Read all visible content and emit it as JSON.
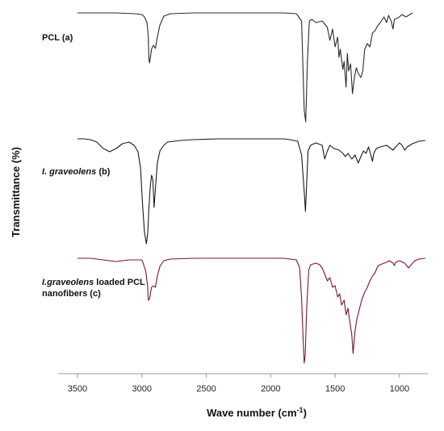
{
  "chart_data": {
    "type": "line",
    "xlabel": "Wave number (cm",
    "xlabel_sup": "-1",
    "xlabel_end": ")",
    "ylabel": "Transmittance (%)",
    "xlim": [
      3650,
      780
    ],
    "x_reversed": true,
    "x_ticks": [
      3500,
      3000,
      2500,
      2000,
      1500,
      1000
    ],
    "grid": false,
    "series": [
      {
        "label_parts": [
          {
            "text": "PCL (a)",
            "italic": false
          }
        ],
        "color": "#2b2b2b",
        "points": [
          [
            3500,
            0
          ],
          [
            3350,
            0
          ],
          [
            3200,
            0
          ],
          [
            3050,
            -1
          ],
          [
            3000,
            -2
          ],
          [
            2980,
            -5
          ],
          [
            2960,
            -12
          ],
          [
            2950,
            -30
          ],
          [
            2945,
            -58
          ],
          [
            2940,
            -62
          ],
          [
            2925,
            -45
          ],
          [
            2910,
            -40
          ],
          [
            2895,
            -44
          ],
          [
            2880,
            -30
          ],
          [
            2860,
            -15
          ],
          [
            2830,
            -4
          ],
          [
            2780,
            -1
          ],
          [
            2600,
            0
          ],
          [
            2400,
            0
          ],
          [
            2200,
            0
          ],
          [
            2000,
            0
          ],
          [
            1900,
            0
          ],
          [
            1800,
            -1
          ],
          [
            1760,
            -10
          ],
          [
            1740,
            -120
          ],
          [
            1728,
            -135
          ],
          [
            1715,
            -60
          ],
          [
            1700,
            -10
          ],
          [
            1680,
            -8
          ],
          [
            1650,
            -12
          ],
          [
            1600,
            -10
          ],
          [
            1560,
            -18
          ],
          [
            1540,
            -34
          ],
          [
            1520,
            -20
          ],
          [
            1500,
            -42
          ],
          [
            1480,
            -30
          ],
          [
            1470,
            -55
          ],
          [
            1460,
            -45
          ],
          [
            1440,
            -70
          ],
          [
            1430,
            -60
          ],
          [
            1415,
            -92
          ],
          [
            1405,
            -50
          ],
          [
            1395,
            -72
          ],
          [
            1380,
            -63
          ],
          [
            1365,
            -100
          ],
          [
            1350,
            -80
          ],
          [
            1335,
            -68
          ],
          [
            1320,
            -75
          ],
          [
            1300,
            -80
          ],
          [
            1285,
            -72
          ],
          [
            1270,
            -45
          ],
          [
            1250,
            -38
          ],
          [
            1230,
            -42
          ],
          [
            1210,
            -25
          ],
          [
            1190,
            -22
          ],
          [
            1170,
            -16
          ],
          [
            1150,
            -12
          ],
          [
            1120,
            -5
          ],
          [
            1100,
            -12
          ],
          [
            1085,
            -3
          ],
          [
            1065,
            -10
          ],
          [
            1050,
            -20
          ],
          [
            1040,
            -8
          ],
          [
            1010,
            -6
          ],
          [
            980,
            -2
          ],
          [
            950,
            -5
          ],
          [
            900,
            0
          ]
        ]
      },
      {
        "label_parts": [
          {
            "text": "I. graveolens",
            "italic": true
          },
          {
            "text": " (b)",
            "italic": false
          }
        ],
        "color": "#1a1a1a",
        "points": [
          [
            3500,
            0
          ],
          [
            3450,
            0
          ],
          [
            3400,
            -1
          ],
          [
            3350,
            -4
          ],
          [
            3300,
            -12
          ],
          [
            3250,
            -16
          ],
          [
            3200,
            -12
          ],
          [
            3150,
            -6
          ],
          [
            3100,
            -4
          ],
          [
            3060,
            -8
          ],
          [
            3030,
            -16
          ],
          [
            3010,
            -36
          ],
          [
            2995,
            -80
          ],
          [
            2980,
            -115
          ],
          [
            2965,
            -130
          ],
          [
            2955,
            -118
          ],
          [
            2945,
            -85
          ],
          [
            2935,
            -60
          ],
          [
            2925,
            -45
          ],
          [
            2915,
            -50
          ],
          [
            2905,
            -85
          ],
          [
            2895,
            -62
          ],
          [
            2880,
            -30
          ],
          [
            2860,
            -15
          ],
          [
            2830,
            -8
          ],
          [
            2800,
            -4
          ],
          [
            2700,
            -2
          ],
          [
            2600,
            -1
          ],
          [
            2400,
            0
          ],
          [
            2200,
            0
          ],
          [
            2000,
            0
          ],
          [
            1900,
            0
          ],
          [
            1850,
            -1
          ],
          [
            1790,
            -3
          ],
          [
            1760,
            -20
          ],
          [
            1740,
            -65
          ],
          [
            1730,
            -90
          ],
          [
            1722,
            -60
          ],
          [
            1710,
            -15
          ],
          [
            1690,
            -8
          ],
          [
            1650,
            -5
          ],
          [
            1600,
            -8
          ],
          [
            1580,
            -25
          ],
          [
            1560,
            -15
          ],
          [
            1540,
            -8
          ],
          [
            1510,
            -12
          ],
          [
            1470,
            -14
          ],
          [
            1440,
            -18
          ],
          [
            1420,
            -22
          ],
          [
            1400,
            -18
          ],
          [
            1370,
            -25
          ],
          [
            1345,
            -20
          ],
          [
            1320,
            -30
          ],
          [
            1300,
            -22
          ],
          [
            1280,
            -15
          ],
          [
            1260,
            -18
          ],
          [
            1240,
            -10
          ],
          [
            1220,
            -22
          ],
          [
            1210,
            -28
          ],
          [
            1200,
            -18
          ],
          [
            1180,
            -12
          ],
          [
            1150,
            -10
          ],
          [
            1100,
            -8
          ],
          [
            1050,
            -14
          ],
          [
            1030,
            -10
          ],
          [
            1000,
            -5
          ],
          [
            980,
            -8
          ],
          [
            960,
            -14
          ],
          [
            940,
            -10
          ],
          [
            900,
            -6
          ],
          [
            850,
            -3
          ],
          [
            800,
            -2
          ]
        ]
      },
      {
        "label_parts": [
          {
            "text": "I.graveolens",
            "italic": true
          },
          {
            "text": " loaded PCL",
            "italic": false
          }
        ],
        "label_line2": "nanofibers (c)",
        "color": "#7a1530",
        "points": [
          [
            3500,
            0
          ],
          [
            3400,
            0
          ],
          [
            3300,
            -2
          ],
          [
            3200,
            -4
          ],
          [
            3100,
            -2
          ],
          [
            3000,
            -2
          ],
          [
            2990,
            -6
          ],
          [
            2970,
            -16
          ],
          [
            2955,
            -35
          ],
          [
            2950,
            -52
          ],
          [
            2940,
            -50
          ],
          [
            2925,
            -36
          ],
          [
            2910,
            -34
          ],
          [
            2895,
            -36
          ],
          [
            2880,
            -22
          ],
          [
            2860,
            -10
          ],
          [
            2830,
            -3
          ],
          [
            2780,
            -1
          ],
          [
            2600,
            0
          ],
          [
            2400,
            0
          ],
          [
            2200,
            0
          ],
          [
            2000,
            0
          ],
          [
            1900,
            0
          ],
          [
            1850,
            -1
          ],
          [
            1800,
            -2
          ],
          [
            1775,
            -12
          ],
          [
            1760,
            -50
          ],
          [
            1748,
            -100
          ],
          [
            1740,
            -130
          ],
          [
            1732,
            -120
          ],
          [
            1720,
            -60
          ],
          [
            1705,
            -15
          ],
          [
            1690,
            -8
          ],
          [
            1650,
            -6
          ],
          [
            1620,
            -8
          ],
          [
            1600,
            -12
          ],
          [
            1580,
            -20
          ],
          [
            1560,
            -28
          ],
          [
            1540,
            -24
          ],
          [
            1520,
            -36
          ],
          [
            1500,
            -34
          ],
          [
            1480,
            -48
          ],
          [
            1465,
            -44
          ],
          [
            1450,
            -58
          ],
          [
            1430,
            -52
          ],
          [
            1415,
            -70
          ],
          [
            1400,
            -62
          ],
          [
            1385,
            -80
          ],
          [
            1370,
            -95
          ],
          [
            1360,
            -118
          ],
          [
            1345,
            -90
          ],
          [
            1330,
            -75
          ],
          [
            1310,
            -62
          ],
          [
            1290,
            -50
          ],
          [
            1270,
            -42
          ],
          [
            1250,
            -36
          ],
          [
            1230,
            -28
          ],
          [
            1210,
            -22
          ],
          [
            1190,
            -18
          ],
          [
            1170,
            -10
          ],
          [
            1150,
            -8
          ],
          [
            1120,
            -6
          ],
          [
            1100,
            -5
          ],
          [
            1080,
            -3
          ],
          [
            1050,
            -6
          ],
          [
            1040,
            -9
          ],
          [
            1030,
            -5
          ],
          [
            1000,
            -3
          ],
          [
            960,
            -6
          ],
          [
            930,
            -12
          ],
          [
            910,
            -8
          ],
          [
            880,
            -3
          ],
          [
            850,
            -1
          ],
          [
            800,
            0
          ]
        ]
      }
    ]
  }
}
